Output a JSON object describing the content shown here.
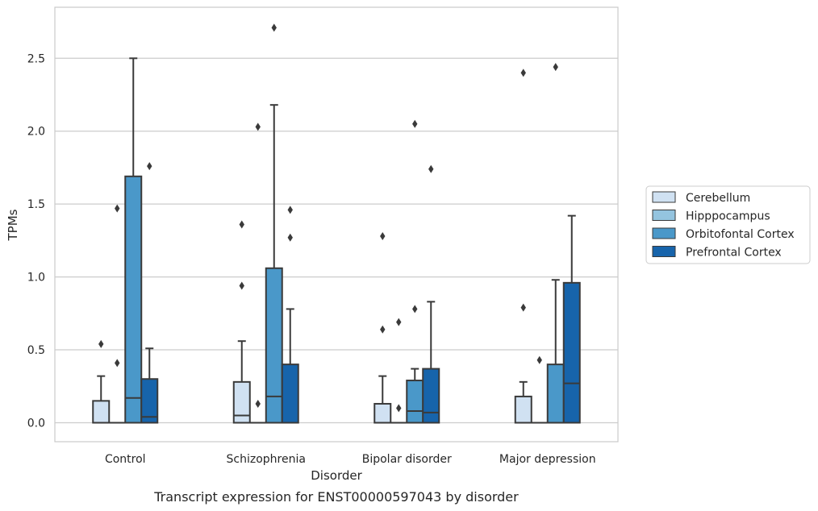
{
  "chart_data": {
    "type": "box",
    "caption": "Transcript expression for ENST00000597043 by disorder",
    "xlabel": "Disorder",
    "ylabel": "TPMs",
    "ylim": [
      -0.13,
      2.85
    ],
    "yticks": [
      0.0,
      0.5,
      1.0,
      1.5,
      2.0,
      2.5
    ],
    "ytick_labels": [
      "0.0",
      "0.5",
      "1.0",
      "1.5",
      "2.0",
      "2.5"
    ],
    "grid": "horizontal",
    "legend_position": "right",
    "categories": [
      "Control",
      "Schizophrenia",
      "Bipolar disorder",
      "Major depression"
    ],
    "series": [
      {
        "name": "Cerebellum",
        "color": "#d0e1f2",
        "boxes": [
          {
            "q1": 0.0,
            "median": 0.0,
            "q3": 0.15,
            "whisker_low": 0.0,
            "whisker_high": 0.32,
            "outliers": [
              0.54
            ]
          },
          {
            "q1": 0.0,
            "median": 0.05,
            "q3": 0.28,
            "whisker_low": 0.0,
            "whisker_high": 0.56,
            "outliers": [
              0.94,
              1.36
            ]
          },
          {
            "q1": 0.0,
            "median": 0.0,
            "q3": 0.13,
            "whisker_low": 0.0,
            "whisker_high": 0.32,
            "outliers": [
              0.64,
              1.28
            ]
          },
          {
            "q1": 0.0,
            "median": 0.0,
            "q3": 0.18,
            "whisker_low": 0.0,
            "whisker_high": 0.28,
            "outliers": [
              0.79,
              2.4
            ]
          }
        ]
      },
      {
        "name": "Hipppocampus",
        "color": "#94c4df",
        "boxes": [
          {
            "q1": 0.0,
            "median": 0.0,
            "q3": 0.0,
            "whisker_low": 0.0,
            "whisker_high": 0.0,
            "outliers": [
              0.41,
              1.47
            ]
          },
          {
            "q1": 0.0,
            "median": 0.0,
            "q3": 0.0,
            "whisker_low": 0.0,
            "whisker_high": 0.0,
            "outliers": [
              0.13,
              2.03
            ]
          },
          {
            "q1": 0.0,
            "median": 0.0,
            "q3": 0.0,
            "whisker_low": 0.0,
            "whisker_high": 0.0,
            "outliers": [
              0.1,
              0.69
            ]
          },
          {
            "q1": 0.0,
            "median": 0.0,
            "q3": 0.0,
            "whisker_low": 0.0,
            "whisker_high": 0.0,
            "outliers": [
              0.43
            ]
          }
        ]
      },
      {
        "name": "Orbitofontal Cortex",
        "color": "#4a98c9",
        "boxes": [
          {
            "q1": 0.0,
            "median": 0.17,
            "q3": 1.69,
            "whisker_low": 0.0,
            "whisker_high": 2.5,
            "outliers": []
          },
          {
            "q1": 0.0,
            "median": 0.18,
            "q3": 1.06,
            "whisker_low": 0.0,
            "whisker_high": 2.18,
            "outliers": [
              2.71
            ]
          },
          {
            "q1": 0.0,
            "median": 0.08,
            "q3": 0.29,
            "whisker_low": 0.0,
            "whisker_high": 0.37,
            "outliers": [
              0.78,
              2.05
            ]
          },
          {
            "q1": 0.0,
            "median": 0.0,
            "q3": 0.4,
            "whisker_low": 0.0,
            "whisker_high": 0.98,
            "outliers": [
              2.44
            ]
          }
        ]
      },
      {
        "name": "Prefrontal Cortex",
        "color": "#1764ab",
        "boxes": [
          {
            "q1": 0.0,
            "median": 0.04,
            "q3": 0.3,
            "whisker_low": 0.0,
            "whisker_high": 0.51,
            "outliers": [
              1.76
            ]
          },
          {
            "q1": 0.0,
            "median": 0.0,
            "q3": 0.4,
            "whisker_low": 0.0,
            "whisker_high": 0.78,
            "outliers": [
              1.27,
              1.46
            ]
          },
          {
            "q1": 0.0,
            "median": 0.07,
            "q3": 0.37,
            "whisker_low": 0.0,
            "whisker_high": 0.83,
            "outliers": [
              1.74
            ]
          },
          {
            "q1": 0.0,
            "median": 0.27,
            "q3": 0.96,
            "whisker_low": 0.0,
            "whisker_high": 1.42,
            "outliers": []
          }
        ]
      }
    ]
  }
}
